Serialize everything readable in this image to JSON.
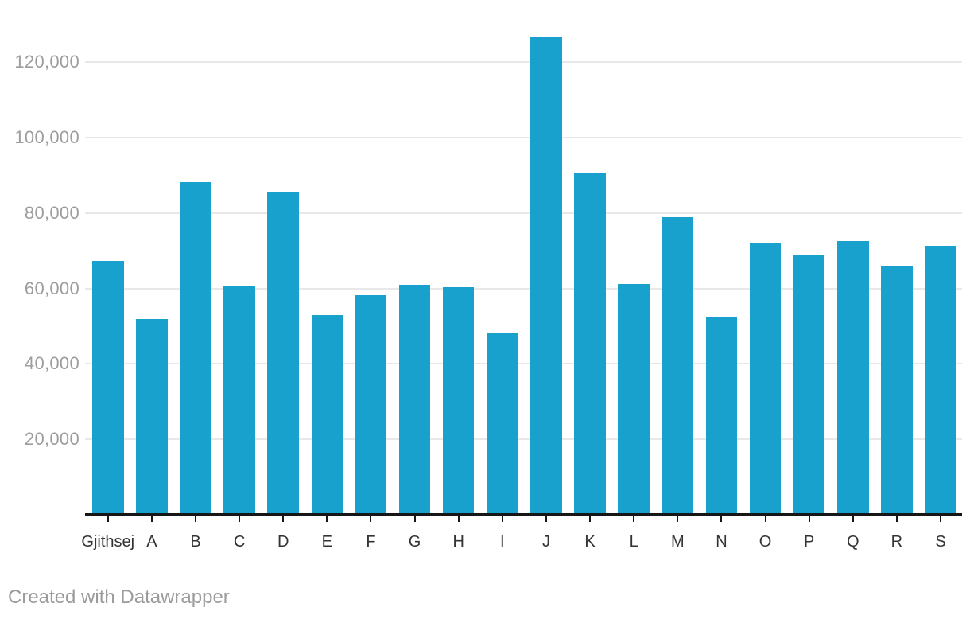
{
  "chart_data": {
    "type": "bar",
    "title": "",
    "xlabel": "",
    "ylabel": "",
    "legend": "none",
    "grid": "horizontal",
    "ylim": [
      0,
      130000
    ],
    "categories": [
      "Gjithsej",
      "A",
      "B",
      "C",
      "D",
      "E",
      "F",
      "G",
      "H",
      "I",
      "J",
      "K",
      "L",
      "M",
      "N",
      "O",
      "P",
      "Q",
      "R",
      "S"
    ],
    "values": [
      67300,
      52000,
      88300,
      60600,
      85700,
      53000,
      58200,
      61000,
      60400,
      48100,
      126600,
      90800,
      61200,
      78900,
      52400,
      72200,
      69100,
      72500,
      66100,
      71400
    ],
    "y_ticks": [
      {
        "value": 20000,
        "label": "20,000"
      },
      {
        "value": 40000,
        "label": "40,000"
      },
      {
        "value": 60000,
        "label": "60,000"
      },
      {
        "value": 80000,
        "label": "80,000"
      },
      {
        "value": 100000,
        "label": "100,000"
      },
      {
        "value": 120000,
        "label": "120,000"
      }
    ]
  },
  "footer": {
    "attribution": "Created with Datawrapper"
  },
  "colors": {
    "bar": "#18a1cd",
    "gridline": "#e8e8e8",
    "axis": "#161616",
    "y_tick_label": "#9d9d9d",
    "x_tick_label": "#333333",
    "attribution": "#9b9b9b",
    "background": "#ffffff"
  }
}
